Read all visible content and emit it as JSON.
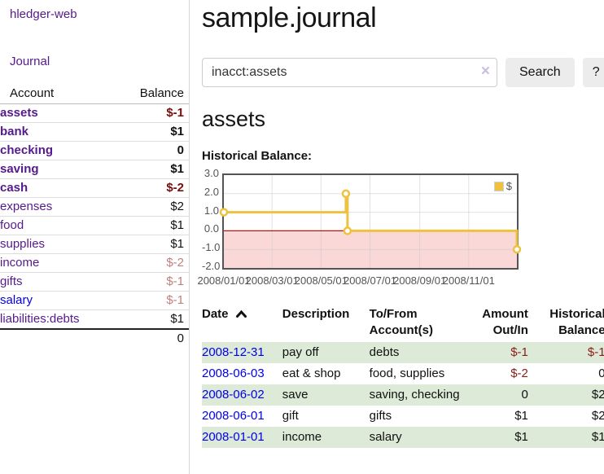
{
  "app": {
    "brand": "hledger-web",
    "nav_journal": "Journal"
  },
  "colors": {
    "link_purple": "#551a8b",
    "link_blue": "#0000ee",
    "negative_strong": "#7b0c0c",
    "negative_soft": "#c0807e",
    "negative_table": "#891e18",
    "row_green": "#dcead7",
    "series_yellow": "#edc240",
    "negative_region_pink": "#fbd8d8",
    "zero_line_red": "#9b1c1c",
    "chart_border": "#545454"
  },
  "sidebar": {
    "header": {
      "account": "Account",
      "balance": "Balance"
    },
    "accounts": [
      {
        "name": "assets",
        "balance": "$-1",
        "level": 1,
        "bold": true,
        "name_style": "purple",
        "balance_style": "neg-strong"
      },
      {
        "name": "bank",
        "balance": "$1",
        "level": 2,
        "bold": true,
        "name_style": "purple",
        "balance_style": "pos-strong"
      },
      {
        "name": "checking",
        "balance": "0",
        "level": 3,
        "bold": true,
        "name_style": "purple",
        "balance_style": "pos-strong"
      },
      {
        "name": "saving",
        "balance": "$1",
        "level": 3,
        "bold": true,
        "name_style": "purple",
        "balance_style": "pos-strong"
      },
      {
        "name": "cash",
        "balance": "$-2",
        "level": 2,
        "bold": true,
        "name_style": "purple",
        "balance_style": "neg-strong"
      },
      {
        "name": "expenses",
        "balance": "$2",
        "level": 1,
        "bold": false,
        "name_style": "purple",
        "balance_style": "pos"
      },
      {
        "name": "food",
        "balance": "$1",
        "level": 2,
        "bold": false,
        "name_style": "purple",
        "balance_style": "pos"
      },
      {
        "name": "supplies",
        "balance": "$1",
        "level": 2,
        "bold": false,
        "name_style": "purple",
        "balance_style": "pos"
      },
      {
        "name": "income",
        "balance": "$-2",
        "level": 1,
        "bold": false,
        "name_style": "purple",
        "balance_style": "neg-soft"
      },
      {
        "name": "gifts",
        "balance": "$-1",
        "level": 2,
        "bold": false,
        "name_style": "purple",
        "balance_style": "neg-soft"
      },
      {
        "name": "salary",
        "balance": "$-1",
        "level": 2,
        "bold": false,
        "name_style": "blue",
        "balance_style": "neg-soft"
      },
      {
        "name": "liabilities:debts",
        "balance": "$1",
        "level": 1,
        "bold": false,
        "name_style": "purple",
        "balance_style": "pos"
      }
    ],
    "total": "0"
  },
  "main": {
    "title": "sample.journal",
    "search": {
      "value": "inacct:assets",
      "clear_icon": "×",
      "search_button": "Search",
      "help_button": "?"
    },
    "account_heading": "assets",
    "chart_heading": "Historical Balance:"
  },
  "chart_data": {
    "type": "line",
    "title": "Historical Balance:",
    "step": true,
    "series": [
      {
        "name": "$",
        "color": "#edc240",
        "points": [
          [
            "2008/01/01",
            1.0
          ],
          [
            "2008/06/01",
            2.0
          ],
          [
            "2008/06/03",
            0.0
          ],
          [
            "2008/12/31",
            -1.0
          ]
        ]
      }
    ],
    "x_ticks": [
      "2008/01/01",
      "2008/03/01",
      "2008/05/01",
      "2008/07/01",
      "2008/09/01",
      "2008/11/01"
    ],
    "y_ticks": [
      3.0,
      2.0,
      1.0,
      0.0,
      -1.0,
      -2.0
    ],
    "ylim": [
      -2.0,
      3.0
    ],
    "xlim": [
      "2008/01/01",
      "2008/12/31"
    ],
    "grid": true,
    "legend_position": "top-right",
    "legend": [
      {
        "label": "$",
        "color": "#edc240"
      }
    ],
    "negative_region": {
      "from": 0.0,
      "to": -2.0,
      "color": "#fbd8d8"
    },
    "zero_line_color": "#9b1c1c"
  },
  "register": {
    "columns": [
      {
        "line1": "Date",
        "line2": "",
        "sortable": true,
        "align": "left"
      },
      {
        "line1": "Description",
        "line2": "",
        "sortable": false,
        "align": "left"
      },
      {
        "line1": "To/From",
        "line2": "Account(s)",
        "sortable": false,
        "align": "left"
      },
      {
        "line1": "Amount",
        "line2": "Out/In",
        "sortable": false,
        "align": "right"
      },
      {
        "line1": "Historical",
        "line2": "Balance",
        "sortable": false,
        "align": "right"
      }
    ],
    "rows": [
      {
        "date": "2008-12-31",
        "description": "pay off",
        "accounts": "debts",
        "amount": "$-1",
        "amount_neg": true,
        "balance": "$-1",
        "balance_neg": true,
        "green": true
      },
      {
        "date": "2008-06-03",
        "description": "eat & shop",
        "accounts": "food, supplies",
        "amount": "$-2",
        "amount_neg": true,
        "balance": "0",
        "balance_neg": false,
        "green": false
      },
      {
        "date": "2008-06-02",
        "description": "save",
        "accounts": "saving, checking",
        "amount": "0",
        "amount_neg": false,
        "balance": "$2",
        "balance_neg": false,
        "green": true
      },
      {
        "date": "2008-06-01",
        "description": "gift",
        "accounts": "gifts",
        "amount": "$1",
        "amount_neg": false,
        "balance": "$2",
        "balance_neg": false,
        "green": false
      },
      {
        "date": "2008-01-01",
        "description": "income",
        "accounts": "salary",
        "amount": "$1",
        "amount_neg": false,
        "balance": "$1",
        "balance_neg": false,
        "green": true
      }
    ]
  }
}
